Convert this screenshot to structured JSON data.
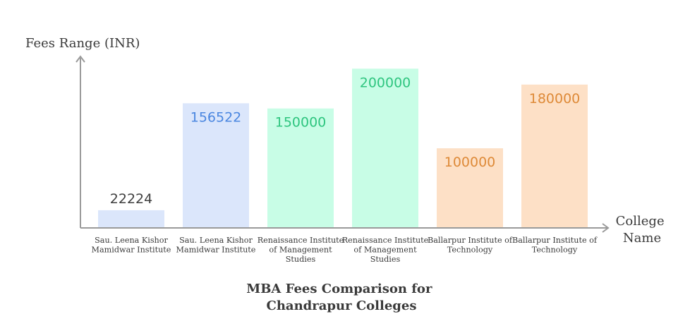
{
  "chart_data": {
    "type": "bar",
    "title_lines": [
      "MBA Fees Comparison for",
      "Chandrapur Colleges"
    ],
    "ylabel": "Fees Range (INR)",
    "xlabel_lines": [
      "College",
      "Name"
    ],
    "ylim": [
      0,
      210000
    ],
    "grid": false,
    "legend": "none",
    "categories": [
      [
        "Sau. Leena Kishor",
        "Mamidwar Institute"
      ],
      [
        "Sau. Leena Kishor",
        "Mamidwar Institute"
      ],
      [
        "Renaissance Institute",
        "of Management",
        "Studies"
      ],
      [
        "Renaissance Institute",
        "of Management",
        "Studies"
      ],
      [
        "Ballarpur Institute of",
        "Technology"
      ],
      [
        "Ballarpur Institute of",
        "Technology"
      ]
    ],
    "values": [
      22224,
      156522,
      150000,
      200000,
      100000,
      180000
    ],
    "value_labels": [
      "22224",
      "156522",
      "150000",
      "200000",
      "100000",
      "180000"
    ],
    "bar_colors": [
      "#dbe6fb",
      "#dbe6fb",
      "#c8fde6",
      "#c8fde6",
      "#fde0c6",
      "#fde0c6"
    ],
    "label_colors": [
      "#3f3f3f",
      "#4a86e0",
      "#2ec57f",
      "#2ec57f",
      "#de8a38",
      "#de8a38"
    ],
    "axis_color": "#9a9a9a"
  }
}
